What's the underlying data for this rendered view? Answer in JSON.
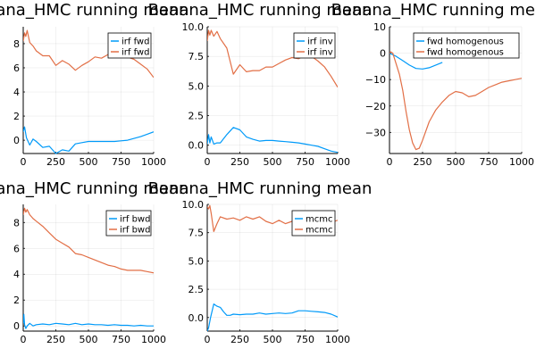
{
  "chart_data": [
    {
      "type": "line",
      "title": "Banana_HMC running mean",
      "xlim": [
        0,
        1000
      ],
      "ylim": [
        -1.1,
        9.4
      ],
      "xticks": [
        0,
        250,
        500,
        750,
        1000
      ],
      "yticks": [
        0,
        2,
        4,
        6,
        8
      ],
      "ytick_labels": [
        "0",
        "2",
        "4",
        "6",
        "8"
      ],
      "grid": true,
      "legend_position": "top-right",
      "series": [
        {
          "name": "irf fwd",
          "color": "#009af9",
          "x": [
            0,
            10,
            25,
            50,
            75,
            100,
            150,
            200,
            250,
            300,
            350,
            400,
            450,
            500,
            550,
            600,
            650,
            700,
            750,
            800,
            850,
            900,
            950,
            1000
          ],
          "y": [
            0.7,
            1.1,
            0.2,
            -0.4,
            0.1,
            -0.1,
            -0.6,
            -0.5,
            -1.1,
            -0.8,
            -0.9,
            -0.3,
            -0.2,
            -0.1,
            -0.1,
            -0.1,
            -0.1,
            -0.1,
            -0.05,
            0.0,
            0.15,
            0.3,
            0.5,
            0.7
          ]
        },
        {
          "name": "irf fwd",
          "color": "#e26f46",
          "x": [
            0,
            10,
            20,
            30,
            50,
            75,
            100,
            150,
            200,
            250,
            300,
            350,
            400,
            450,
            500,
            550,
            600,
            650,
            700,
            750,
            800,
            850,
            900,
            950,
            1000
          ],
          "y": [
            8.2,
            8.9,
            8.6,
            9.1,
            8.1,
            7.8,
            7.4,
            7.0,
            7.0,
            6.2,
            6.6,
            6.3,
            5.8,
            6.2,
            6.5,
            6.9,
            6.8,
            7.1,
            7.1,
            7.0,
            6.9,
            6.7,
            6.3,
            5.9,
            5.2
          ]
        }
      ]
    },
    {
      "type": "line",
      "title": "Banana_HMC running mean",
      "xlim": [
        0,
        1000
      ],
      "ylim": [
        -0.7,
        10.0
      ],
      "xticks": [
        0,
        250,
        500,
        750,
        1000
      ],
      "yticks": [
        0,
        2.5,
        5,
        7.5,
        10
      ],
      "ytick_labels": [
        "0.0",
        "2.5",
        "5.0",
        "7.5",
        "10.0"
      ],
      "grid": true,
      "legend_position": "top-right",
      "series": [
        {
          "name": "irf inv",
          "color": "#009af9",
          "x": [
            0,
            10,
            20,
            30,
            50,
            75,
            100,
            150,
            200,
            250,
            300,
            350,
            400,
            450,
            500,
            550,
            600,
            650,
            700,
            750,
            800,
            850,
            900,
            950,
            1000
          ],
          "y": [
            0.1,
            0.9,
            0.2,
            0.7,
            0.1,
            0.2,
            0.2,
            0.9,
            1.5,
            1.3,
            0.7,
            0.5,
            0.35,
            0.4,
            0.4,
            0.35,
            0.3,
            0.25,
            0.2,
            0.1,
            0.0,
            -0.1,
            -0.3,
            -0.5,
            -0.6
          ]
        },
        {
          "name": "irf inv",
          "color": "#e26f46",
          "x": [
            0,
            10,
            20,
            30,
            50,
            75,
            100,
            150,
            200,
            250,
            300,
            350,
            400,
            450,
            500,
            550,
            600,
            650,
            700,
            750,
            800,
            850,
            900,
            950,
            1000
          ],
          "y": [
            8.8,
            9.7,
            9.3,
            9.7,
            9.2,
            9.6,
            9.0,
            8.2,
            6.0,
            6.8,
            6.2,
            6.3,
            6.3,
            6.6,
            6.6,
            6.9,
            7.2,
            7.4,
            7.3,
            7.6,
            7.5,
            7.1,
            6.6,
            5.8,
            4.9
          ]
        }
      ]
    },
    {
      "type": "line",
      "title": "Banana_HMC running mean",
      "xlim": [
        0,
        1000
      ],
      "ylim": [
        -38,
        10
      ],
      "xticks": [
        0,
        250,
        500,
        750,
        1000
      ],
      "yticks": [
        -30,
        -20,
        -10,
        0,
        10
      ],
      "ytick_labels": [
        "−30",
        "−20",
        "−10",
        "0",
        "10"
      ],
      "grid": true,
      "legend_position": "top-right",
      "series": [
        {
          "name": "fwd homogenous",
          "color": "#009af9",
          "x": [
            0,
            50,
            100,
            150,
            200,
            250,
            300,
            350,
            400
          ],
          "y": [
            0.0,
            -1.2,
            -2.8,
            -4.5,
            -5.8,
            -6.0,
            -5.5,
            -4.5,
            -3.5
          ]
        },
        {
          "name": "fwd homogenous",
          "color": "#e26f46",
          "x": [
            0,
            10,
            25,
            50,
            75,
            100,
            125,
            150,
            175,
            200,
            225,
            250,
            300,
            350,
            400,
            450,
            500,
            550,
            600,
            650,
            700,
            750,
            800,
            850,
            900,
            950,
            1000
          ],
          "y": [
            0.0,
            0.5,
            0.0,
            -4.0,
            -8.0,
            -14.0,
            -22.0,
            -29.0,
            -34.0,
            -36.5,
            -36.0,
            -33.0,
            -26.0,
            -21.5,
            -18.5,
            -16.0,
            -14.5,
            -15.0,
            -16.5,
            -16.0,
            -14.5,
            -13.0,
            -12.0,
            -11.0,
            -10.5,
            -10.0,
            -9.5
          ]
        }
      ]
    },
    {
      "type": "line",
      "title": "Banana_HMC running mean",
      "xlim": [
        0,
        1000
      ],
      "ylim": [
        -0.4,
        9.4
      ],
      "xticks": [
        0,
        250,
        500,
        750,
        1000
      ],
      "yticks": [
        0,
        2,
        4,
        6,
        8
      ],
      "ytick_labels": [
        "0",
        "2",
        "4",
        "6",
        "8"
      ],
      "grid": true,
      "legend_position": "top-right",
      "series": [
        {
          "name": "irf bwd",
          "color": "#009af9",
          "x": [
            0,
            5,
            10,
            20,
            30,
            50,
            75,
            100,
            150,
            200,
            250,
            300,
            350,
            400,
            450,
            500,
            550,
            600,
            650,
            700,
            750,
            800,
            850,
            900,
            950,
            1000
          ],
          "y": [
            0.2,
            0.9,
            0.1,
            -0.2,
            0.0,
            0.2,
            0.0,
            0.1,
            0.15,
            0.1,
            0.2,
            0.15,
            0.1,
            0.2,
            0.1,
            0.15,
            0.1,
            0.1,
            0.05,
            0.1,
            0.05,
            0.05,
            0.0,
            0.05,
            0.0,
            0.0
          ]
        },
        {
          "name": "irf bwd",
          "color": "#e26f46",
          "x": [
            0,
            10,
            20,
            30,
            50,
            75,
            100,
            150,
            200,
            250,
            300,
            350,
            400,
            450,
            500,
            550,
            600,
            650,
            700,
            750,
            800,
            850,
            900,
            950,
            1000
          ],
          "y": [
            8.6,
            9.1,
            8.8,
            9.0,
            8.6,
            8.3,
            8.1,
            7.7,
            7.2,
            6.7,
            6.4,
            6.1,
            5.6,
            5.5,
            5.3,
            5.1,
            4.9,
            4.7,
            4.6,
            4.4,
            4.3,
            4.3,
            4.3,
            4.2,
            4.1
          ]
        }
      ]
    },
    {
      "type": "line",
      "title": "Banana_HMC running mean",
      "xlim": [
        0,
        1000
      ],
      "ylim": [
        -1.2,
        10.0
      ],
      "xticks": [
        0,
        250,
        500,
        750,
        1000
      ],
      "yticks": [
        0,
        2.5,
        5,
        7.5,
        10
      ],
      "ytick_labels": [
        "0.0",
        "2.5",
        "5.0",
        "7.5",
        "10.0"
      ],
      "grid": true,
      "legend_position": "top-right",
      "series": [
        {
          "name": "mcmc",
          "color": "#009af9",
          "x": [
            0,
            10,
            25,
            50,
            75,
            100,
            125,
            150,
            175,
            200,
            250,
            300,
            350,
            400,
            450,
            500,
            550,
            600,
            650,
            700,
            750,
            800,
            850,
            900,
            950,
            1000
          ],
          "y": [
            -1.2,
            -0.9,
            0.0,
            1.2,
            1.0,
            0.9,
            0.5,
            0.2,
            0.2,
            0.3,
            0.25,
            0.3,
            0.3,
            0.4,
            0.3,
            0.35,
            0.4,
            0.35,
            0.4,
            0.6,
            0.6,
            0.55,
            0.5,
            0.45,
            0.3,
            0.05
          ]
        },
        {
          "name": "mcmc",
          "color": "#e26f46",
          "x": [
            0,
            10,
            20,
            30,
            50,
            75,
            100,
            150,
            200,
            250,
            300,
            350,
            400,
            450,
            500,
            550,
            600,
            650,
            700,
            750,
            800,
            850,
            900,
            950,
            1000
          ],
          "y": [
            9.8,
            9.6,
            9.9,
            9.2,
            7.6,
            8.3,
            8.9,
            8.7,
            8.8,
            8.6,
            8.9,
            8.7,
            8.9,
            8.5,
            8.3,
            8.6,
            8.3,
            8.5,
            8.6,
            8.5,
            8.4,
            8.4,
            8.5,
            8.4,
            8.6
          ]
        }
      ]
    }
  ]
}
